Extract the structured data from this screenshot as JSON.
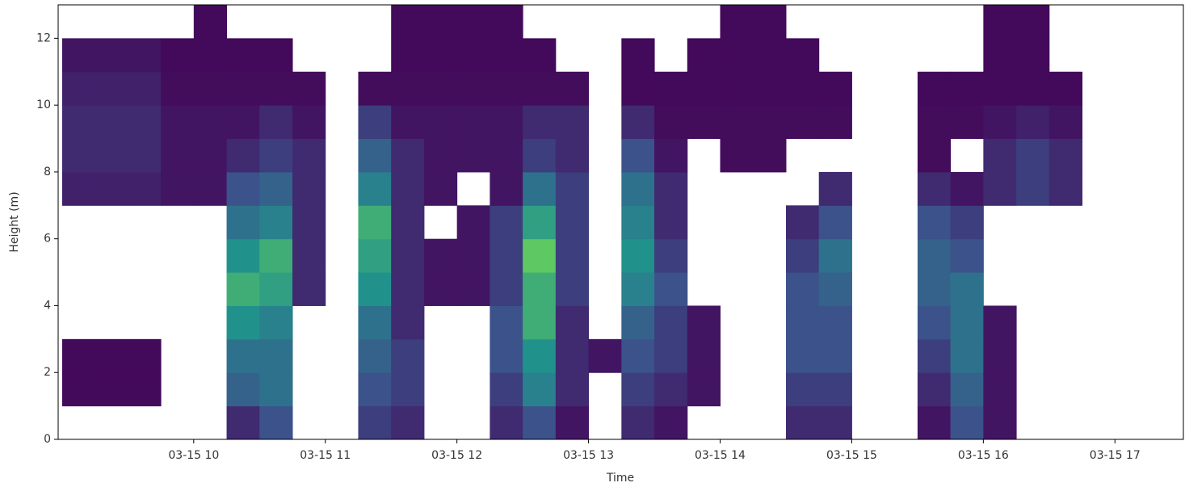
{
  "chart_data": {
    "type": "heatmap",
    "xlabel": "Time",
    "ylabel": "Height (m)",
    "colormap": "viridis",
    "zlim": [
      0,
      0.8
    ],
    "xlim": [
      8.97,
      17.52
    ],
    "ylim": [
      0,
      13
    ],
    "xticks": [
      {
        "value": 10,
        "label": "03-15 10"
      },
      {
        "value": 11,
        "label": "03-15 11"
      },
      {
        "value": 12,
        "label": "03-15 12"
      },
      {
        "value": 13,
        "label": "03-15 13"
      },
      {
        "value": 14,
        "label": "03-15 14"
      },
      {
        "value": 15,
        "label": "03-15 15"
      },
      {
        "value": 16,
        "label": "03-15 16"
      },
      {
        "value": 17,
        "label": "03-15 17"
      }
    ],
    "yticks": [
      0,
      2,
      4,
      6,
      8,
      10,
      12
    ],
    "x_bins": [
      9.0,
      9.25,
      9.5,
      9.75,
      10.0,
      10.25,
      10.5,
      10.75,
      11.0,
      11.25,
      11.5,
      11.75,
      12.0,
      12.25,
      12.5,
      12.75,
      13.0,
      13.25,
      13.5,
      13.75,
      14.0,
      14.25,
      14.5,
      14.75,
      15.0,
      15.25,
      15.5,
      15.75,
      16.0,
      16.25,
      16.5,
      16.75,
      17.0,
      17.25,
      17.5
    ],
    "y_bins": [
      0,
      1,
      2,
      3,
      4,
      5,
      6,
      7,
      8,
      9,
      10,
      11,
      12,
      13
    ],
    "z": [
      [
        null,
        null,
        null,
        null,
        null,
        0.1,
        0.2,
        null,
        null,
        0.15,
        0.1,
        null,
        null,
        0.1,
        0.2,
        0.05,
        null,
        0.1,
        0.05,
        null,
        null,
        null,
        0.1,
        0.1,
        null,
        null,
        0.05,
        0.2,
        0.05,
        null,
        null,
        null,
        null,
        null
      ],
      [
        0.02,
        0.02,
        0.02,
        null,
        null,
        0.25,
        0.3,
        null,
        null,
        0.2,
        0.15,
        null,
        null,
        0.15,
        0.35,
        0.1,
        null,
        0.15,
        0.1,
        0.05,
        null,
        null,
        0.15,
        0.15,
        null,
        null,
        0.1,
        0.25,
        0.05,
        null,
        null,
        null,
        null,
        null
      ],
      [
        0.02,
        0.02,
        0.02,
        null,
        null,
        0.3,
        0.3,
        null,
        null,
        0.25,
        0.15,
        null,
        null,
        0.2,
        0.4,
        0.1,
        0.05,
        0.2,
        0.15,
        0.05,
        null,
        null,
        0.2,
        0.2,
        null,
        null,
        0.15,
        0.3,
        0.05,
        null,
        null,
        null,
        null,
        null
      ],
      [
        null,
        null,
        null,
        null,
        null,
        0.4,
        0.35,
        null,
        null,
        0.3,
        0.1,
        null,
        null,
        0.2,
        0.5,
        0.1,
        null,
        0.25,
        0.15,
        0.05,
        null,
        null,
        0.2,
        0.2,
        null,
        null,
        0.2,
        0.3,
        0.05,
        null,
        null,
        null,
        null,
        null
      ],
      [
        null,
        null,
        null,
        null,
        null,
        0.5,
        0.45,
        0.1,
        null,
        0.4,
        0.1,
        0.05,
        0.05,
        0.15,
        0.5,
        0.15,
        null,
        0.35,
        0.2,
        null,
        null,
        null,
        0.2,
        0.25,
        null,
        null,
        0.25,
        0.3,
        null,
        null,
        null,
        null,
        null,
        null
      ],
      [
        null,
        null,
        null,
        null,
        null,
        0.4,
        0.5,
        0.1,
        null,
        0.45,
        0.1,
        0.05,
        0.05,
        0.15,
        0.6,
        0.15,
        null,
        0.4,
        0.15,
        null,
        null,
        null,
        0.15,
        0.3,
        null,
        null,
        0.25,
        0.2,
        null,
        null,
        null,
        null,
        null,
        null
      ],
      [
        null,
        null,
        null,
        null,
        null,
        0.3,
        0.35,
        0.1,
        null,
        0.5,
        0.1,
        null,
        0.05,
        0.15,
        0.45,
        0.15,
        null,
        0.35,
        0.1,
        null,
        null,
        null,
        0.1,
        0.2,
        null,
        null,
        0.2,
        0.15,
        null,
        null,
        null,
        null,
        null,
        null
      ],
      [
        0.08,
        0.08,
        0.08,
        0.05,
        0.05,
        0.2,
        0.25,
        0.1,
        null,
        0.35,
        0.1,
        0.05,
        null,
        0.05,
        0.3,
        0.15,
        null,
        0.3,
        0.1,
        null,
        null,
        null,
        null,
        0.1,
        null,
        null,
        0.1,
        0.05,
        0.1,
        0.15,
        0.1,
        null,
        null,
        null
      ],
      [
        0.1,
        0.1,
        0.1,
        0.05,
        0.05,
        0.1,
        0.15,
        0.1,
        null,
        0.25,
        0.1,
        0.05,
        0.05,
        0.05,
        0.15,
        0.1,
        null,
        0.2,
        0.05,
        null,
        0.03,
        0.03,
        null,
        null,
        null,
        null,
        0.03,
        null,
        0.1,
        0.15,
        0.1,
        null,
        null,
        null
      ],
      [
        0.1,
        0.1,
        0.1,
        0.05,
        0.05,
        0.05,
        0.1,
        0.05,
        null,
        0.15,
        0.05,
        0.05,
        0.05,
        0.05,
        0.1,
        0.1,
        null,
        0.1,
        0.03,
        0.03,
        0.03,
        0.03,
        0.03,
        0.03,
        null,
        null,
        0.03,
        0.03,
        0.05,
        0.08,
        0.05,
        null,
        null,
        null
      ],
      [
        0.08,
        0.08,
        0.08,
        0.03,
        0.03,
        0.03,
        0.03,
        0.03,
        null,
        0.03,
        0.03,
        0.03,
        0.03,
        0.03,
        0.03,
        0.03,
        null,
        0.02,
        0.02,
        0.02,
        0.02,
        0.02,
        0.02,
        0.02,
        null,
        null,
        0.02,
        0.02,
        0.02,
        0.02,
        0.02,
        null,
        null,
        null
      ],
      [
        0.05,
        0.05,
        0.05,
        0.02,
        0.02,
        0.02,
        0.02,
        null,
        null,
        null,
        0.02,
        0.02,
        0.02,
        0.02,
        0.02,
        null,
        null,
        0.02,
        null,
        0.02,
        0.02,
        0.02,
        0.02,
        null,
        null,
        null,
        null,
        null,
        0.02,
        0.02,
        null,
        null,
        null,
        null
      ],
      [
        null,
        null,
        null,
        null,
        0.02,
        null,
        null,
        null,
        null,
        null,
        0.02,
        0.02,
        0.02,
        0.02,
        null,
        null,
        null,
        null,
        null,
        null,
        0.02,
        0.02,
        null,
        null,
        null,
        null,
        null,
        null,
        0.02,
        0.02,
        null,
        null,
        null,
        null
      ]
    ]
  }
}
